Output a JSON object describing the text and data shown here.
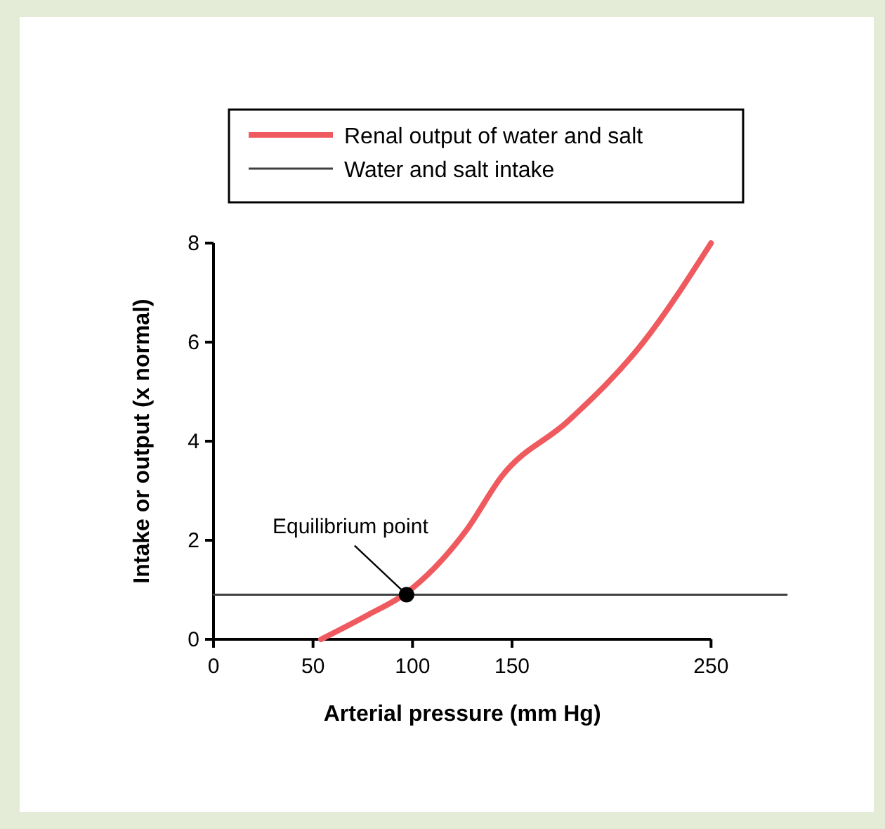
{
  "chart_data": {
    "type": "line",
    "xlabel": "Arterial pressure (mm Hg)",
    "ylabel": "Intake or output (x normal)",
    "xlim": [
      0,
      288
    ],
    "xticks": [
      0,
      50,
      100,
      150,
      250
    ],
    "ylim": [
      0,
      8
    ],
    "yticks": [
      0,
      2,
      4,
      6,
      8
    ],
    "series": [
      {
        "name": "Renal output of water and salt",
        "color": "#ef5a5f",
        "x": [
          54,
          77,
          97,
          127,
          145,
          178,
          216,
          250
        ],
        "values": [
          0,
          0.48,
          0.94,
          2.2,
          3.3,
          4.4,
          6.0,
          8.0
        ]
      },
      {
        "name": "Water and salt intake",
        "color": "#404040",
        "x": [
          0,
          288
        ],
        "values": [
          0.9,
          0.9
        ]
      },
      {
        "type": "scatter",
        "color": "#000000",
        "x": [
          97
        ],
        "values": [
          0.9
        ],
        "marker": "circle"
      }
    ],
    "annotations": [
      {
        "text": "Equilibrium point",
        "x": 97,
        "y": 0.9
      }
    ],
    "legend": "top",
    "grid": false
  }
}
